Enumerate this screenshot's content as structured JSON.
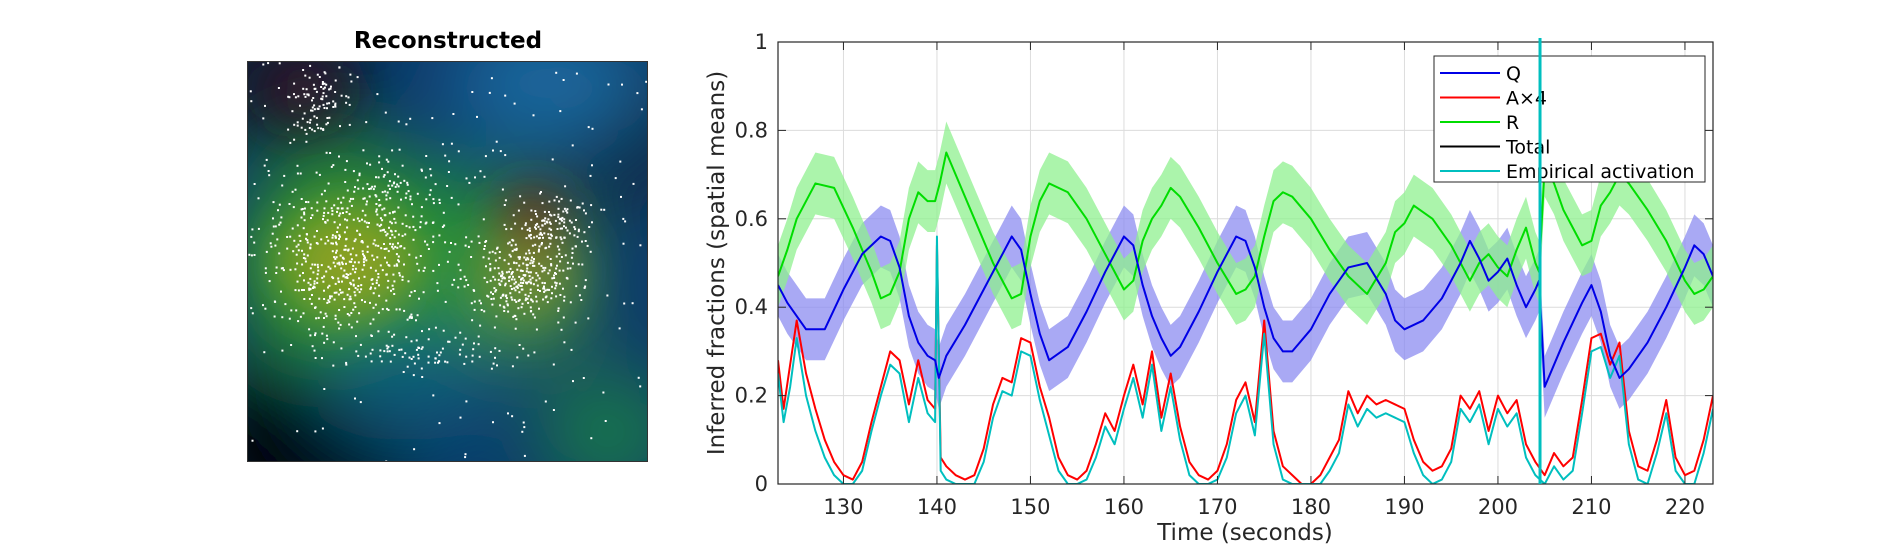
{
  "left_panel": {
    "title": "Reconstructed"
  },
  "chart_data": {
    "type": "line",
    "title": "",
    "xlabel": "Time (seconds)",
    "ylabel": "Inferred fractions (spatial means)",
    "xlim": [
      123,
      223
    ],
    "ylim": [
      0,
      1
    ],
    "xticks": [
      130,
      140,
      150,
      160,
      170,
      180,
      190,
      200,
      210,
      220
    ],
    "yticks": [
      0,
      0.2,
      0.4,
      0.6,
      0.8,
      1
    ],
    "grid": true,
    "legend_position": "top-right",
    "vertical_line_x": 204.5,
    "vertical_line_color": "#00bfbf",
    "series": [
      {
        "name": "Q",
        "color": "#0000e6",
        "band_color": "#8c8cf0",
        "band_halfwidth": 0.07,
        "x": [
          123,
          124,
          126,
          128,
          130,
          132,
          134,
          135,
          136,
          137,
          138,
          139,
          139.8,
          140.2,
          141,
          143,
          145,
          147,
          148,
          149,
          150,
          151,
          152,
          154,
          156,
          158,
          160,
          161,
          162,
          163,
          164,
          165,
          166,
          168,
          170,
          172,
          173,
          174,
          175,
          176,
          177,
          178,
          180,
          182,
          184,
          186,
          188,
          189,
          190,
          192,
          194,
          196,
          197,
          198,
          199,
          200,
          201,
          202,
          203,
          204,
          204.4,
          205,
          207,
          209,
          210,
          211,
          212,
          213,
          214,
          216,
          218,
          220,
          221,
          222,
          223
        ],
        "values": [
          0.45,
          0.41,
          0.35,
          0.35,
          0.44,
          0.52,
          0.56,
          0.55,
          0.49,
          0.38,
          0.32,
          0.29,
          0.28,
          0.24,
          0.29,
          0.36,
          0.44,
          0.52,
          0.56,
          0.53,
          0.43,
          0.34,
          0.28,
          0.31,
          0.39,
          0.48,
          0.56,
          0.54,
          0.45,
          0.38,
          0.33,
          0.29,
          0.31,
          0.39,
          0.48,
          0.56,
          0.55,
          0.49,
          0.4,
          0.33,
          0.3,
          0.3,
          0.35,
          0.43,
          0.49,
          0.5,
          0.43,
          0.37,
          0.35,
          0.37,
          0.42,
          0.5,
          0.55,
          0.51,
          0.46,
          0.48,
          0.51,
          0.45,
          0.4,
          0.44,
          0.46,
          0.22,
          0.32,
          0.41,
          0.45,
          0.39,
          0.29,
          0.24,
          0.26,
          0.32,
          0.4,
          0.49,
          0.54,
          0.52,
          0.47
        ]
      },
      {
        "name": "A×4",
        "color": "#ff0000",
        "x": [
          123,
          123.6,
          124.3,
          125,
          126,
          127,
          128,
          129,
          130,
          131,
          132,
          133,
          134,
          135,
          136,
          137,
          138,
          139,
          139.8,
          140,
          140.4,
          141,
          142,
          143,
          144,
          145,
          146,
          147,
          148,
          149,
          150,
          151,
          152,
          153,
          154,
          155,
          156,
          157,
          158,
          159,
          160,
          161,
          162,
          163,
          164,
          165,
          166,
          167,
          168,
          169,
          170,
          171,
          172,
          173,
          174,
          175,
          176,
          177,
          178,
          179,
          180,
          181,
          182,
          183,
          184,
          185,
          186,
          187,
          188,
          189,
          190,
          191,
          192,
          193,
          194,
          195,
          196,
          197,
          198,
          199,
          200,
          201,
          202,
          203,
          204,
          205,
          206,
          207,
          208,
          209,
          210,
          211,
          212,
          213,
          214,
          215,
          216,
          217,
          218,
          219,
          220,
          221,
          222,
          223
        ],
        "values": [
          0.28,
          0.17,
          0.27,
          0.37,
          0.25,
          0.17,
          0.1,
          0.05,
          0.02,
          0.01,
          0.05,
          0.14,
          0.22,
          0.3,
          0.28,
          0.18,
          0.28,
          0.19,
          0.17,
          0.54,
          0.06,
          0.04,
          0.02,
          0.01,
          0.02,
          0.08,
          0.18,
          0.24,
          0.23,
          0.33,
          0.32,
          0.22,
          0.15,
          0.06,
          0.02,
          0.01,
          0.03,
          0.09,
          0.16,
          0.12,
          0.2,
          0.27,
          0.18,
          0.3,
          0.15,
          0.25,
          0.13,
          0.05,
          0.02,
          0.01,
          0.03,
          0.09,
          0.19,
          0.23,
          0.14,
          0.37,
          0.12,
          0.04,
          0.02,
          0.0,
          0.0,
          0.02,
          0.06,
          0.1,
          0.21,
          0.16,
          0.2,
          0.18,
          0.19,
          0.18,
          0.17,
          0.1,
          0.05,
          0.03,
          0.04,
          0.08,
          0.2,
          0.17,
          0.21,
          0.12,
          0.2,
          0.16,
          0.19,
          0.09,
          0.05,
          0.02,
          0.07,
          0.04,
          0.06,
          0.19,
          0.33,
          0.34,
          0.27,
          0.32,
          0.12,
          0.04,
          0.03,
          0.1,
          0.19,
          0.06,
          0.02,
          0.03,
          0.1,
          0.2
        ]
      },
      {
        "name": "R",
        "color": "#00dd00",
        "band_color": "#8ff08f",
        "band_halfwidth": 0.07,
        "x": [
          123,
          124,
          125,
          127,
          129,
          131,
          133,
          134,
          135,
          136,
          137,
          138,
          139,
          139.8,
          140.3,
          141,
          142,
          144,
          146,
          148,
          149,
          150,
          151,
          152,
          154,
          156,
          158,
          160,
          161,
          162,
          163,
          164,
          165,
          166,
          168,
          170,
          172,
          173,
          174,
          175,
          176,
          177,
          178,
          180,
          182,
          184,
          186,
          188,
          189,
          190,
          191,
          193,
          195,
          197,
          198,
          199,
          200,
          201,
          202,
          203,
          204,
          204.4,
          205,
          206,
          207,
          208,
          209,
          210,
          211,
          212,
          213,
          214,
          216,
          218,
          220,
          221,
          222,
          223
        ],
        "values": [
          0.47,
          0.53,
          0.6,
          0.68,
          0.67,
          0.58,
          0.48,
          0.42,
          0.43,
          0.48,
          0.6,
          0.66,
          0.64,
          0.64,
          0.68,
          0.75,
          0.7,
          0.6,
          0.5,
          0.42,
          0.43,
          0.56,
          0.64,
          0.68,
          0.66,
          0.6,
          0.52,
          0.44,
          0.46,
          0.55,
          0.6,
          0.63,
          0.67,
          0.65,
          0.58,
          0.5,
          0.43,
          0.44,
          0.47,
          0.56,
          0.64,
          0.66,
          0.65,
          0.6,
          0.53,
          0.47,
          0.43,
          0.5,
          0.57,
          0.59,
          0.63,
          0.6,
          0.54,
          0.46,
          0.5,
          0.52,
          0.49,
          0.47,
          0.53,
          0.58,
          0.5,
          0.48,
          0.72,
          0.68,
          0.62,
          0.58,
          0.54,
          0.55,
          0.63,
          0.66,
          0.7,
          0.68,
          0.62,
          0.55,
          0.46,
          0.43,
          0.44,
          0.47
        ]
      },
      {
        "name": "Total",
        "color": "#000000",
        "values": []
      },
      {
        "name": "Empirical activation",
        "color": "#00bfbf",
        "x": [
          123,
          123.6,
          124.3,
          125,
          126,
          127,
          128,
          129,
          130,
          131,
          132,
          133,
          134,
          135,
          136,
          137,
          138,
          139,
          139.8,
          140,
          140.4,
          141,
          142,
          143,
          144,
          145,
          146,
          147,
          148,
          149,
          150,
          151,
          152,
          153,
          154,
          155,
          156,
          157,
          158,
          159,
          160,
          161,
          162,
          163,
          164,
          165,
          166,
          167,
          168,
          169,
          170,
          171,
          172,
          173,
          174,
          175,
          176,
          177,
          178,
          179,
          180,
          181,
          182,
          183,
          184,
          185,
          186,
          187,
          188,
          189,
          190,
          191,
          192,
          193,
          194,
          195,
          196,
          197,
          198,
          199,
          200,
          201,
          202,
          203,
          204,
          205,
          206,
          207,
          208,
          209,
          210,
          211,
          212,
          213,
          214,
          215,
          216,
          217,
          218,
          219,
          220,
          221,
          222,
          223
        ],
        "values": [
          0.25,
          0.14,
          0.22,
          0.33,
          0.2,
          0.12,
          0.06,
          0.02,
          0.0,
          0.0,
          0.03,
          0.12,
          0.2,
          0.27,
          0.25,
          0.14,
          0.24,
          0.16,
          0.14,
          0.56,
          0.03,
          0.01,
          0.0,
          0.0,
          0.0,
          0.05,
          0.15,
          0.21,
          0.2,
          0.3,
          0.29,
          0.19,
          0.11,
          0.03,
          0.0,
          0.0,
          0.01,
          0.06,
          0.13,
          0.09,
          0.17,
          0.24,
          0.15,
          0.27,
          0.12,
          0.22,
          0.1,
          0.02,
          0.0,
          0.0,
          0.01,
          0.06,
          0.16,
          0.2,
          0.11,
          0.34,
          0.09,
          0.01,
          0.0,
          0.0,
          0.0,
          0.0,
          0.03,
          0.07,
          0.18,
          0.13,
          0.17,
          0.15,
          0.16,
          0.15,
          0.14,
          0.07,
          0.02,
          0.0,
          0.01,
          0.05,
          0.17,
          0.14,
          0.18,
          0.09,
          0.17,
          0.13,
          0.16,
          0.06,
          0.02,
          0.0,
          0.04,
          0.01,
          0.03,
          0.16,
          0.3,
          0.31,
          0.24,
          0.29,
          0.09,
          0.01,
          0.0,
          0.07,
          0.16,
          0.03,
          0.0,
          0.0,
          0.07,
          0.17
        ]
      }
    ]
  }
}
